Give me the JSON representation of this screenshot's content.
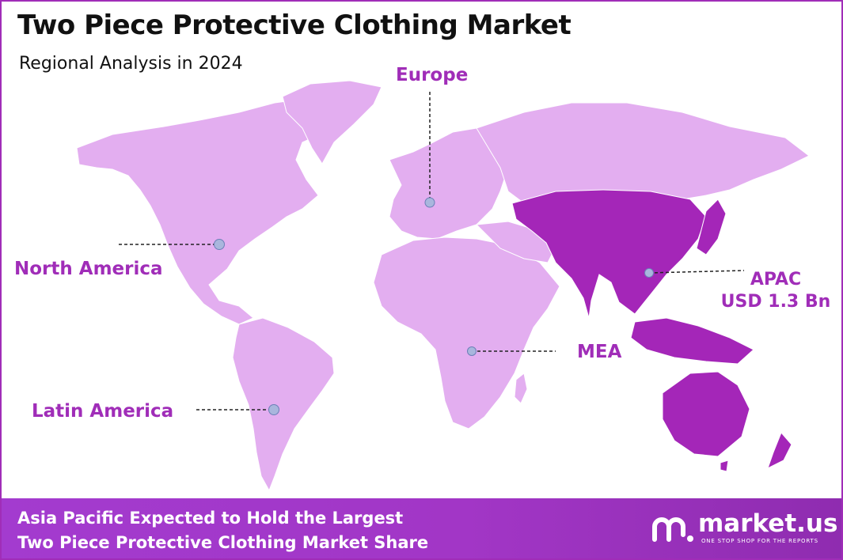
{
  "header": {
    "title": "Two Piece Protective Clothing Market",
    "subtitle": "Regional Analysis in 2024"
  },
  "regions": {
    "europe": "Europe",
    "north_america": "North America",
    "latin_america": "Latin America",
    "mea": "MEA",
    "apac": "APAC",
    "apac_value": "USD 1.3 Bn"
  },
  "footer": {
    "line1": "Asia Pacific Expected to Hold the Largest",
    "line2": "Two Piece Protective Clothing Market Share"
  },
  "brand": {
    "name": "market.us",
    "tagline": "ONE STOP SHOP FOR THE REPORTS"
  },
  "colors": {
    "land_light": "#e3aef0",
    "land_highlight": "#a426b8",
    "accent": "#a02db8",
    "footer": "#a236c6"
  }
}
